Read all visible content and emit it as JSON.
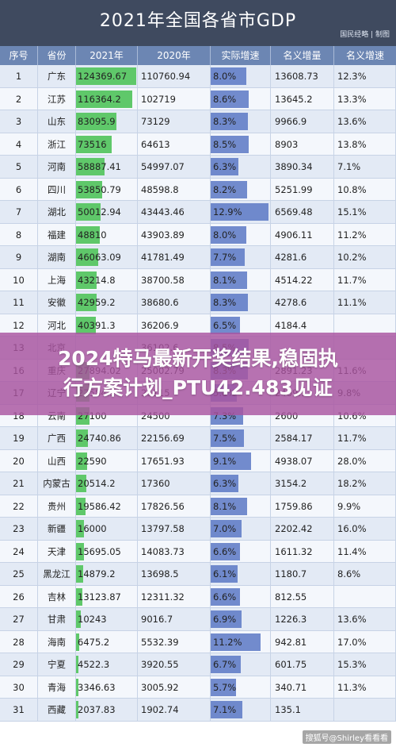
{
  "title": "2021年全国各省市GDP",
  "credit": "国民经略 | 制图",
  "columns": [
    "序号",
    "省份",
    "2021年",
    "2020年",
    "实际增速",
    "名义增量",
    "名义增速"
  ],
  "rows": [
    {
      "rank": "1",
      "province": "广东",
      "gdp2021": "124369.67",
      "gdp2020": "110760.94",
      "real_growth": "8.0%",
      "nominal_increase": "13608.73",
      "nominal_growth": "12.3%"
    },
    {
      "rank": "2",
      "province": "江苏",
      "gdp2021": "116364.2",
      "gdp2020": "102719",
      "real_growth": "8.6%",
      "nominal_increase": "13645.2",
      "nominal_growth": "13.3%"
    },
    {
      "rank": "3",
      "province": "山东",
      "gdp2021": "83095.9",
      "gdp2020": "73129",
      "real_growth": "8.3%",
      "nominal_increase": "9966.9",
      "nominal_growth": "13.6%"
    },
    {
      "rank": "4",
      "province": "浙江",
      "gdp2021": "73516",
      "gdp2020": "64613",
      "real_growth": "8.5%",
      "nominal_increase": "8903",
      "nominal_growth": "13.8%"
    },
    {
      "rank": "5",
      "province": "河南",
      "gdp2021": "58887.41",
      "gdp2020": "54997.07",
      "real_growth": "6.3%",
      "nominal_increase": "3890.34",
      "nominal_growth": "7.1%"
    },
    {
      "rank": "6",
      "province": "四川",
      "gdp2021": "53850.79",
      "gdp2020": "48598.8",
      "real_growth": "8.2%",
      "nominal_increase": "5251.99",
      "nominal_growth": "10.8%"
    },
    {
      "rank": "7",
      "province": "湖北",
      "gdp2021": "50012.94",
      "gdp2020": "43443.46",
      "real_growth": "12.9%",
      "nominal_increase": "6569.48",
      "nominal_growth": "15.1%"
    },
    {
      "rank": "8",
      "province": "福建",
      "gdp2021": "48810",
      "gdp2020": "43903.89",
      "real_growth": "8.0%",
      "nominal_increase": "4906.11",
      "nominal_growth": "11.2%"
    },
    {
      "rank": "9",
      "province": "湖南",
      "gdp2021": "46063.09",
      "gdp2020": "41781.49",
      "real_growth": "7.7%",
      "nominal_increase": "4281.6",
      "nominal_growth": "10.2%"
    },
    {
      "rank": "10",
      "province": "上海",
      "gdp2021": "43214.8",
      "gdp2020": "38700.58",
      "real_growth": "8.1%",
      "nominal_increase": "4514.22",
      "nominal_growth": "11.7%"
    },
    {
      "rank": "11",
      "province": "安徽",
      "gdp2021": "42959.2",
      "gdp2020": "38680.6",
      "real_growth": "8.3%",
      "nominal_increase": "4278.6",
      "nominal_growth": "11.1%"
    },
    {
      "rank": "12",
      "province": "河北",
      "gdp2021": "40391.3",
      "gdp2020": "36206.9",
      "real_growth": "6.5%",
      "nominal_increase": "4184.4",
      "nominal_growth": ""
    },
    {
      "rank": "13",
      "province": "北京",
      "gdp2021": "",
      "gdp2020": "36102.6",
      "real_growth": "8.5%",
      "nominal_increase": "",
      "nominal_growth": ""
    },
    {
      "rank": "16",
      "province": "重庆",
      "gdp2021": "27894.02",
      "gdp2020": "25002.79",
      "real_growth": "8.3%",
      "nominal_increase": "2891.23",
      "nominal_growth": "11.6%"
    },
    {
      "rank": "17",
      "province": "辽宁",
      "gdp2021": "27584.1",
      "gdp2020": "25115",
      "real_growth": "5.8%",
      "nominal_increase": "2469.1",
      "nominal_growth": "9.8%"
    },
    {
      "rank": "18",
      "province": "云南",
      "gdp2021": "27100",
      "gdp2020": "24500",
      "real_growth": "7.3%",
      "nominal_increase": "2600",
      "nominal_growth": "10.6%"
    },
    {
      "rank": "19",
      "province": "广西",
      "gdp2021": "24740.86",
      "gdp2020": "22156.69",
      "real_growth": "7.5%",
      "nominal_increase": "2584.17",
      "nominal_growth": "11.7%"
    },
    {
      "rank": "20",
      "province": "山西",
      "gdp2021": "22590",
      "gdp2020": "17651.93",
      "real_growth": "9.1%",
      "nominal_increase": "4938.07",
      "nominal_growth": "28.0%"
    },
    {
      "rank": "21",
      "province": "内蒙古",
      "gdp2021": "20514.2",
      "gdp2020": "17360",
      "real_growth": "6.3%",
      "nominal_increase": "3154.2",
      "nominal_growth": "18.2%"
    },
    {
      "rank": "22",
      "province": "贵州",
      "gdp2021": "19586.42",
      "gdp2020": "17826.56",
      "real_growth": "8.1%",
      "nominal_increase": "1759.86",
      "nominal_growth": "9.9%"
    },
    {
      "rank": "23",
      "province": "新疆",
      "gdp2021": "16000",
      "gdp2020": "13797.58",
      "real_growth": "7.0%",
      "nominal_increase": "2202.42",
      "nominal_growth": "16.0%"
    },
    {
      "rank": "24",
      "province": "天津",
      "gdp2021": "15695.05",
      "gdp2020": "14083.73",
      "real_growth": "6.6%",
      "nominal_increase": "1611.32",
      "nominal_growth": "11.4%"
    },
    {
      "rank": "25",
      "province": "黑龙江",
      "gdp2021": "14879.2",
      "gdp2020": "13698.5",
      "real_growth": "6.1%",
      "nominal_increase": "1180.7",
      "nominal_growth": "8.6%"
    },
    {
      "rank": "26",
      "province": "吉林",
      "gdp2021": "13123.87",
      "gdp2020": "12311.32",
      "real_growth": "6.6%",
      "nominal_increase": "812.55",
      "nominal_growth": ""
    },
    {
      "rank": "27",
      "province": "甘肃",
      "gdp2021": "10243",
      "gdp2020": "9016.7",
      "real_growth": "6.9%",
      "nominal_increase": "1226.3",
      "nominal_growth": "13.6%"
    },
    {
      "rank": "28",
      "province": "海南",
      "gdp2021": "6475.2",
      "gdp2020": "5532.39",
      "real_growth": "11.2%",
      "nominal_increase": "942.81",
      "nominal_growth": "17.0%"
    },
    {
      "rank": "29",
      "province": "宁夏",
      "gdp2021": "4522.3",
      "gdp2020": "3920.55",
      "real_growth": "6.7%",
      "nominal_increase": "601.75",
      "nominal_growth": "15.3%"
    },
    {
      "rank": "30",
      "province": "青海",
      "gdp2021": "3346.63",
      "gdp2020": "3005.92",
      "real_growth": "5.7%",
      "nominal_increase": "340.71",
      "nominal_growth": "11.3%"
    },
    {
      "rank": "31",
      "province": "西藏",
      "gdp2021": "2037.83",
      "gdp2020": "1902.74",
      "real_growth": "7.1%",
      "nominal_increase": "135.1",
      "nominal_growth": ""
    }
  ],
  "banner": {
    "line1": "2024特马最新开奖结果,稳固执",
    "line2": "行方案计划_PTU42.483见证"
  },
  "watermark": "搜狐号@Shirley看看看",
  "colors": {
    "title_bg": "#3f4a5f",
    "header_bg": "#6c86b3",
    "gdp_bar": "#5fc86a",
    "growth_bar": "#5a78c4",
    "banner": "#aa54a0"
  }
}
